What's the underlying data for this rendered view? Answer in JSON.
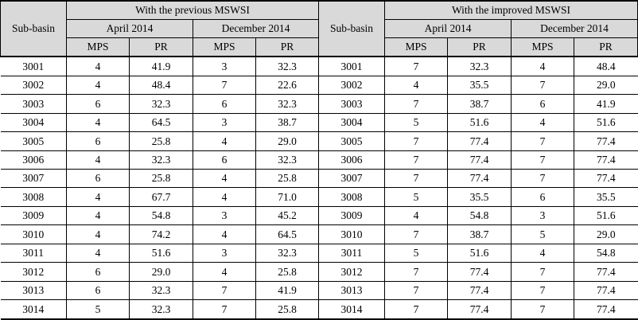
{
  "table": {
    "sections": [
      {
        "row_header": "Sub-basin",
        "title": "With the previous MSWSI",
        "periods": [
          {
            "label": "April 2014"
          },
          {
            "label": "December 2014"
          }
        ],
        "metric_labels": [
          "MPS",
          "PR",
          "MPS",
          "PR"
        ],
        "rows": [
          [
            "3001",
            "4",
            "41.9",
            "3",
            "32.3"
          ],
          [
            "3002",
            "4",
            "48.4",
            "7",
            "22.6"
          ],
          [
            "3003",
            "6",
            "32.3",
            "6",
            "32.3"
          ],
          [
            "3004",
            "4",
            "64.5",
            "3",
            "38.7"
          ],
          [
            "3005",
            "6",
            "25.8",
            "4",
            "29.0"
          ],
          [
            "3006",
            "4",
            "32.3",
            "6",
            "32.3"
          ],
          [
            "3007",
            "6",
            "25.8",
            "4",
            "25.8"
          ],
          [
            "3008",
            "4",
            "67.7",
            "4",
            "71.0"
          ],
          [
            "3009",
            "4",
            "54.8",
            "3",
            "45.2"
          ],
          [
            "3010",
            "4",
            "74.2",
            "4",
            "64.5"
          ],
          [
            "3011",
            "4",
            "51.6",
            "3",
            "32.3"
          ],
          [
            "3012",
            "6",
            "29.0",
            "4",
            "25.8"
          ],
          [
            "3013",
            "6",
            "32.3",
            "7",
            "41.9"
          ],
          [
            "3014",
            "5",
            "32.3",
            "7",
            "25.8"
          ]
        ]
      },
      {
        "row_header": "Sub-basin",
        "title": "With the improved MSWSI",
        "periods": [
          {
            "label": "April 2014"
          },
          {
            "label": "December 2014"
          }
        ],
        "metric_labels": [
          "MPS",
          "PR",
          "MPS",
          "PR"
        ],
        "rows": [
          [
            "3001",
            "7",
            "32.3",
            "4",
            "48.4"
          ],
          [
            "3002",
            "4",
            "35.5",
            "7",
            "29.0"
          ],
          [
            "3003",
            "7",
            "38.7",
            "6",
            "41.9"
          ],
          [
            "3004",
            "5",
            "51.6",
            "4",
            "51.6"
          ],
          [
            "3005",
            "7",
            "77.4",
            "7",
            "77.4"
          ],
          [
            "3006",
            "7",
            "77.4",
            "7",
            "77.4"
          ],
          [
            "3007",
            "7",
            "77.4",
            "7",
            "77.4"
          ],
          [
            "3008",
            "5",
            "35.5",
            "6",
            "35.5"
          ],
          [
            "3009",
            "4",
            "54.8",
            "3",
            "51.6"
          ],
          [
            "3010",
            "7",
            "38.7",
            "5",
            "29.0"
          ],
          [
            "3011",
            "5",
            "51.6",
            "4",
            "54.8"
          ],
          [
            "3012",
            "7",
            "77.4",
            "7",
            "77.4"
          ],
          [
            "3013",
            "7",
            "77.4",
            "7",
            "77.4"
          ],
          [
            "3014",
            "7",
            "77.4",
            "7",
            "77.4"
          ]
        ]
      }
    ],
    "header_bg": "#d9d9d9",
    "border_color": "#000000"
  }
}
